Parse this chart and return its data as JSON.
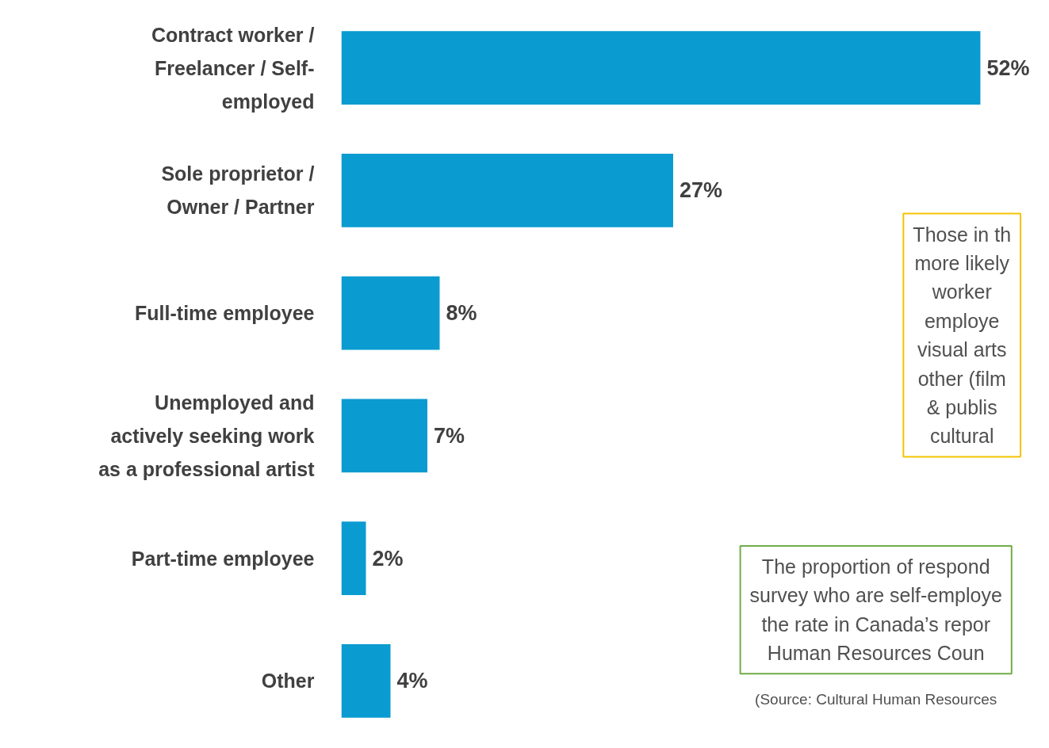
{
  "chart_data": {
    "type": "bar",
    "orientation": "horizontal",
    "categories": [
      "Contract worker /\nFreelancer / Self-\nemployed",
      "Sole proprietor /\nOwner / Partner",
      "Full-time employee",
      "Unemployed and\nactively seeking work\nas a professional artist",
      "Part-time employee",
      "Other"
    ],
    "values": [
      52,
      27,
      8,
      7,
      2,
      4
    ],
    "value_labels": [
      "52%",
      "27%",
      "8%",
      "7%",
      "2%",
      "4%"
    ],
    "color": "#0a9bd0",
    "grid": false,
    "annotations": [
      "Those in th\nmore likely\nworker\nemploye\nvisual arts\nother (film\n& publis\ncultural",
      "The proportion of respond\nsurvey who are self-employe\nthe rate in Canada’s repor\nHuman Resources Coun",
      "(Source: Cultural Human Resources"
    ]
  }
}
